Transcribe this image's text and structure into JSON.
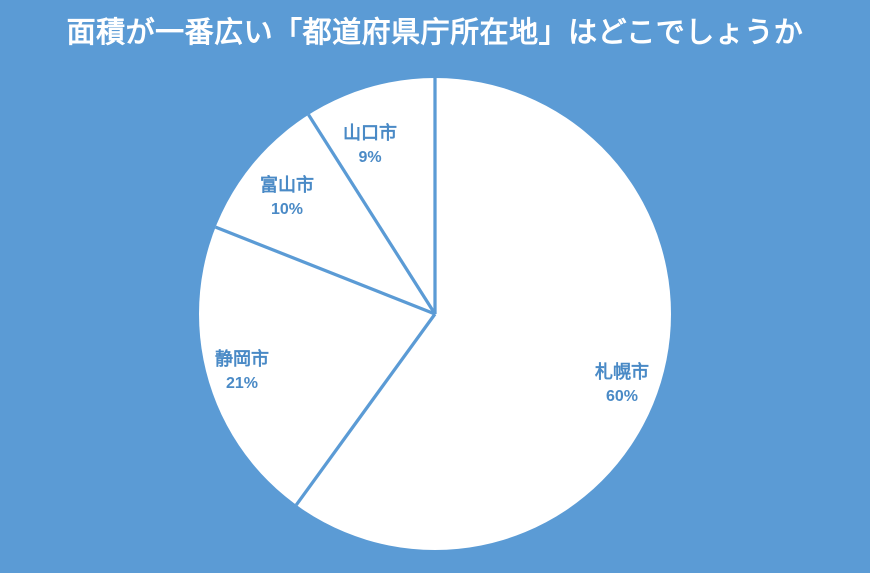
{
  "title": "面積が一番広い「都道府県庁所在地」はどこでしょうか",
  "colors": {
    "background": "#5B9BD5",
    "slice_fill": "#FFFFFF",
    "divider_line": "#5B9BD5",
    "label_text": "#4A8AC6",
    "title_text": "#FFFFFF"
  },
  "chart_data": {
    "type": "pie",
    "title": "面積が一番広い「都道府県庁所在地」はどこでしょうか",
    "start_angle_deg": 0,
    "direction": "clockwise",
    "legend_position": "none",
    "labels_position": "inside",
    "slices": [
      {
        "label": "札幌市",
        "value": 60,
        "pct_label": "60%"
      },
      {
        "label": "静岡市",
        "value": 21,
        "pct_label": "21%"
      },
      {
        "label": "富山市",
        "value": 10,
        "pct_label": "10%"
      },
      {
        "label": "山口市",
        "value": 9,
        "pct_label": "9%"
      }
    ]
  }
}
